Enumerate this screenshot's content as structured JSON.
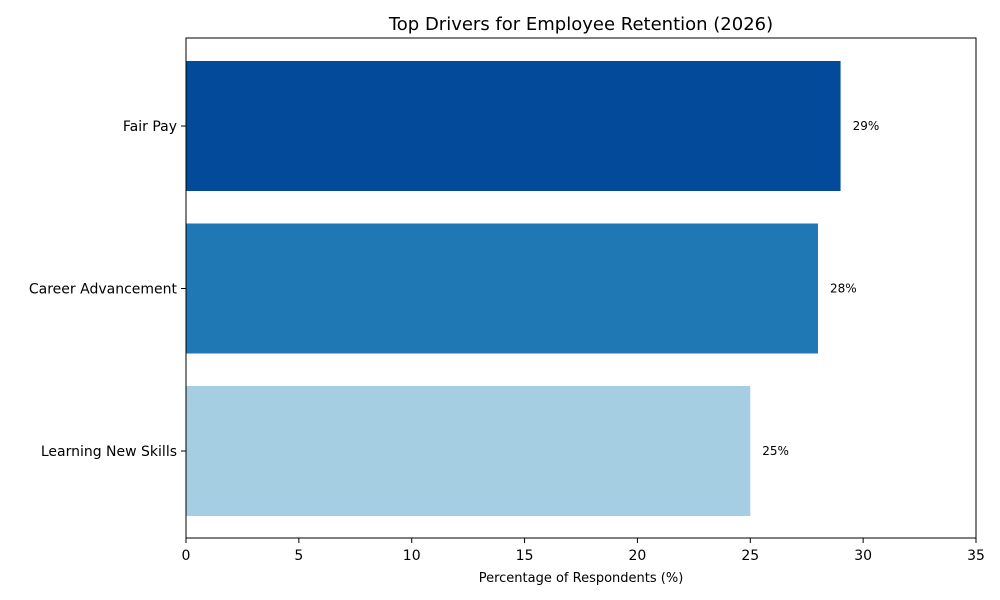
{
  "chart_data": {
    "type": "bar",
    "orientation": "horizontal",
    "title": "Top Drivers for Employee Retention (2026)",
    "xlabel": "Percentage of Respondents (%)",
    "ylabel": "",
    "xlim": [
      0,
      35
    ],
    "x_ticks": [
      "0",
      "5",
      "10",
      "15",
      "20",
      "25",
      "30",
      "35"
    ],
    "grid": false,
    "categories": [
      "Fair Pay",
      "Career Advancement",
      "Learning New Skills"
    ],
    "values": [
      29,
      28,
      25
    ],
    "data_labels": [
      "29%",
      "28%",
      "25%"
    ],
    "colors": [
      "#034b9a",
      "#1f77b4",
      "#a6cee3"
    ]
  }
}
